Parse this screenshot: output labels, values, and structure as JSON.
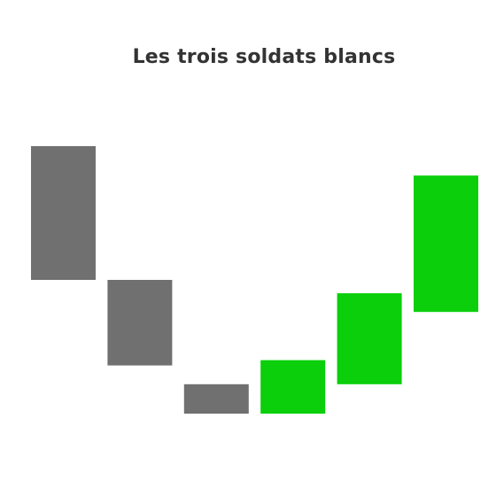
{
  "chart_data": {
    "type": "candlestick",
    "title": "Les trois soldats blancs",
    "y_direction": "up",
    "ylim": [
      0,
      100
    ],
    "candles": [
      {
        "open": 100,
        "close": 50,
        "color": "#707070"
      },
      {
        "open": 50,
        "close": 18,
        "color": "#707070"
      },
      {
        "open": 11,
        "close": 0,
        "color": "#707070"
      },
      {
        "open": 0,
        "close": 20,
        "color": "#0acf0a"
      },
      {
        "open": 11,
        "close": 45,
        "color": "#0acf0a"
      },
      {
        "open": 38,
        "close": 89,
        "color": "#0acf0a"
      }
    ],
    "grid": false,
    "legend": "none"
  }
}
